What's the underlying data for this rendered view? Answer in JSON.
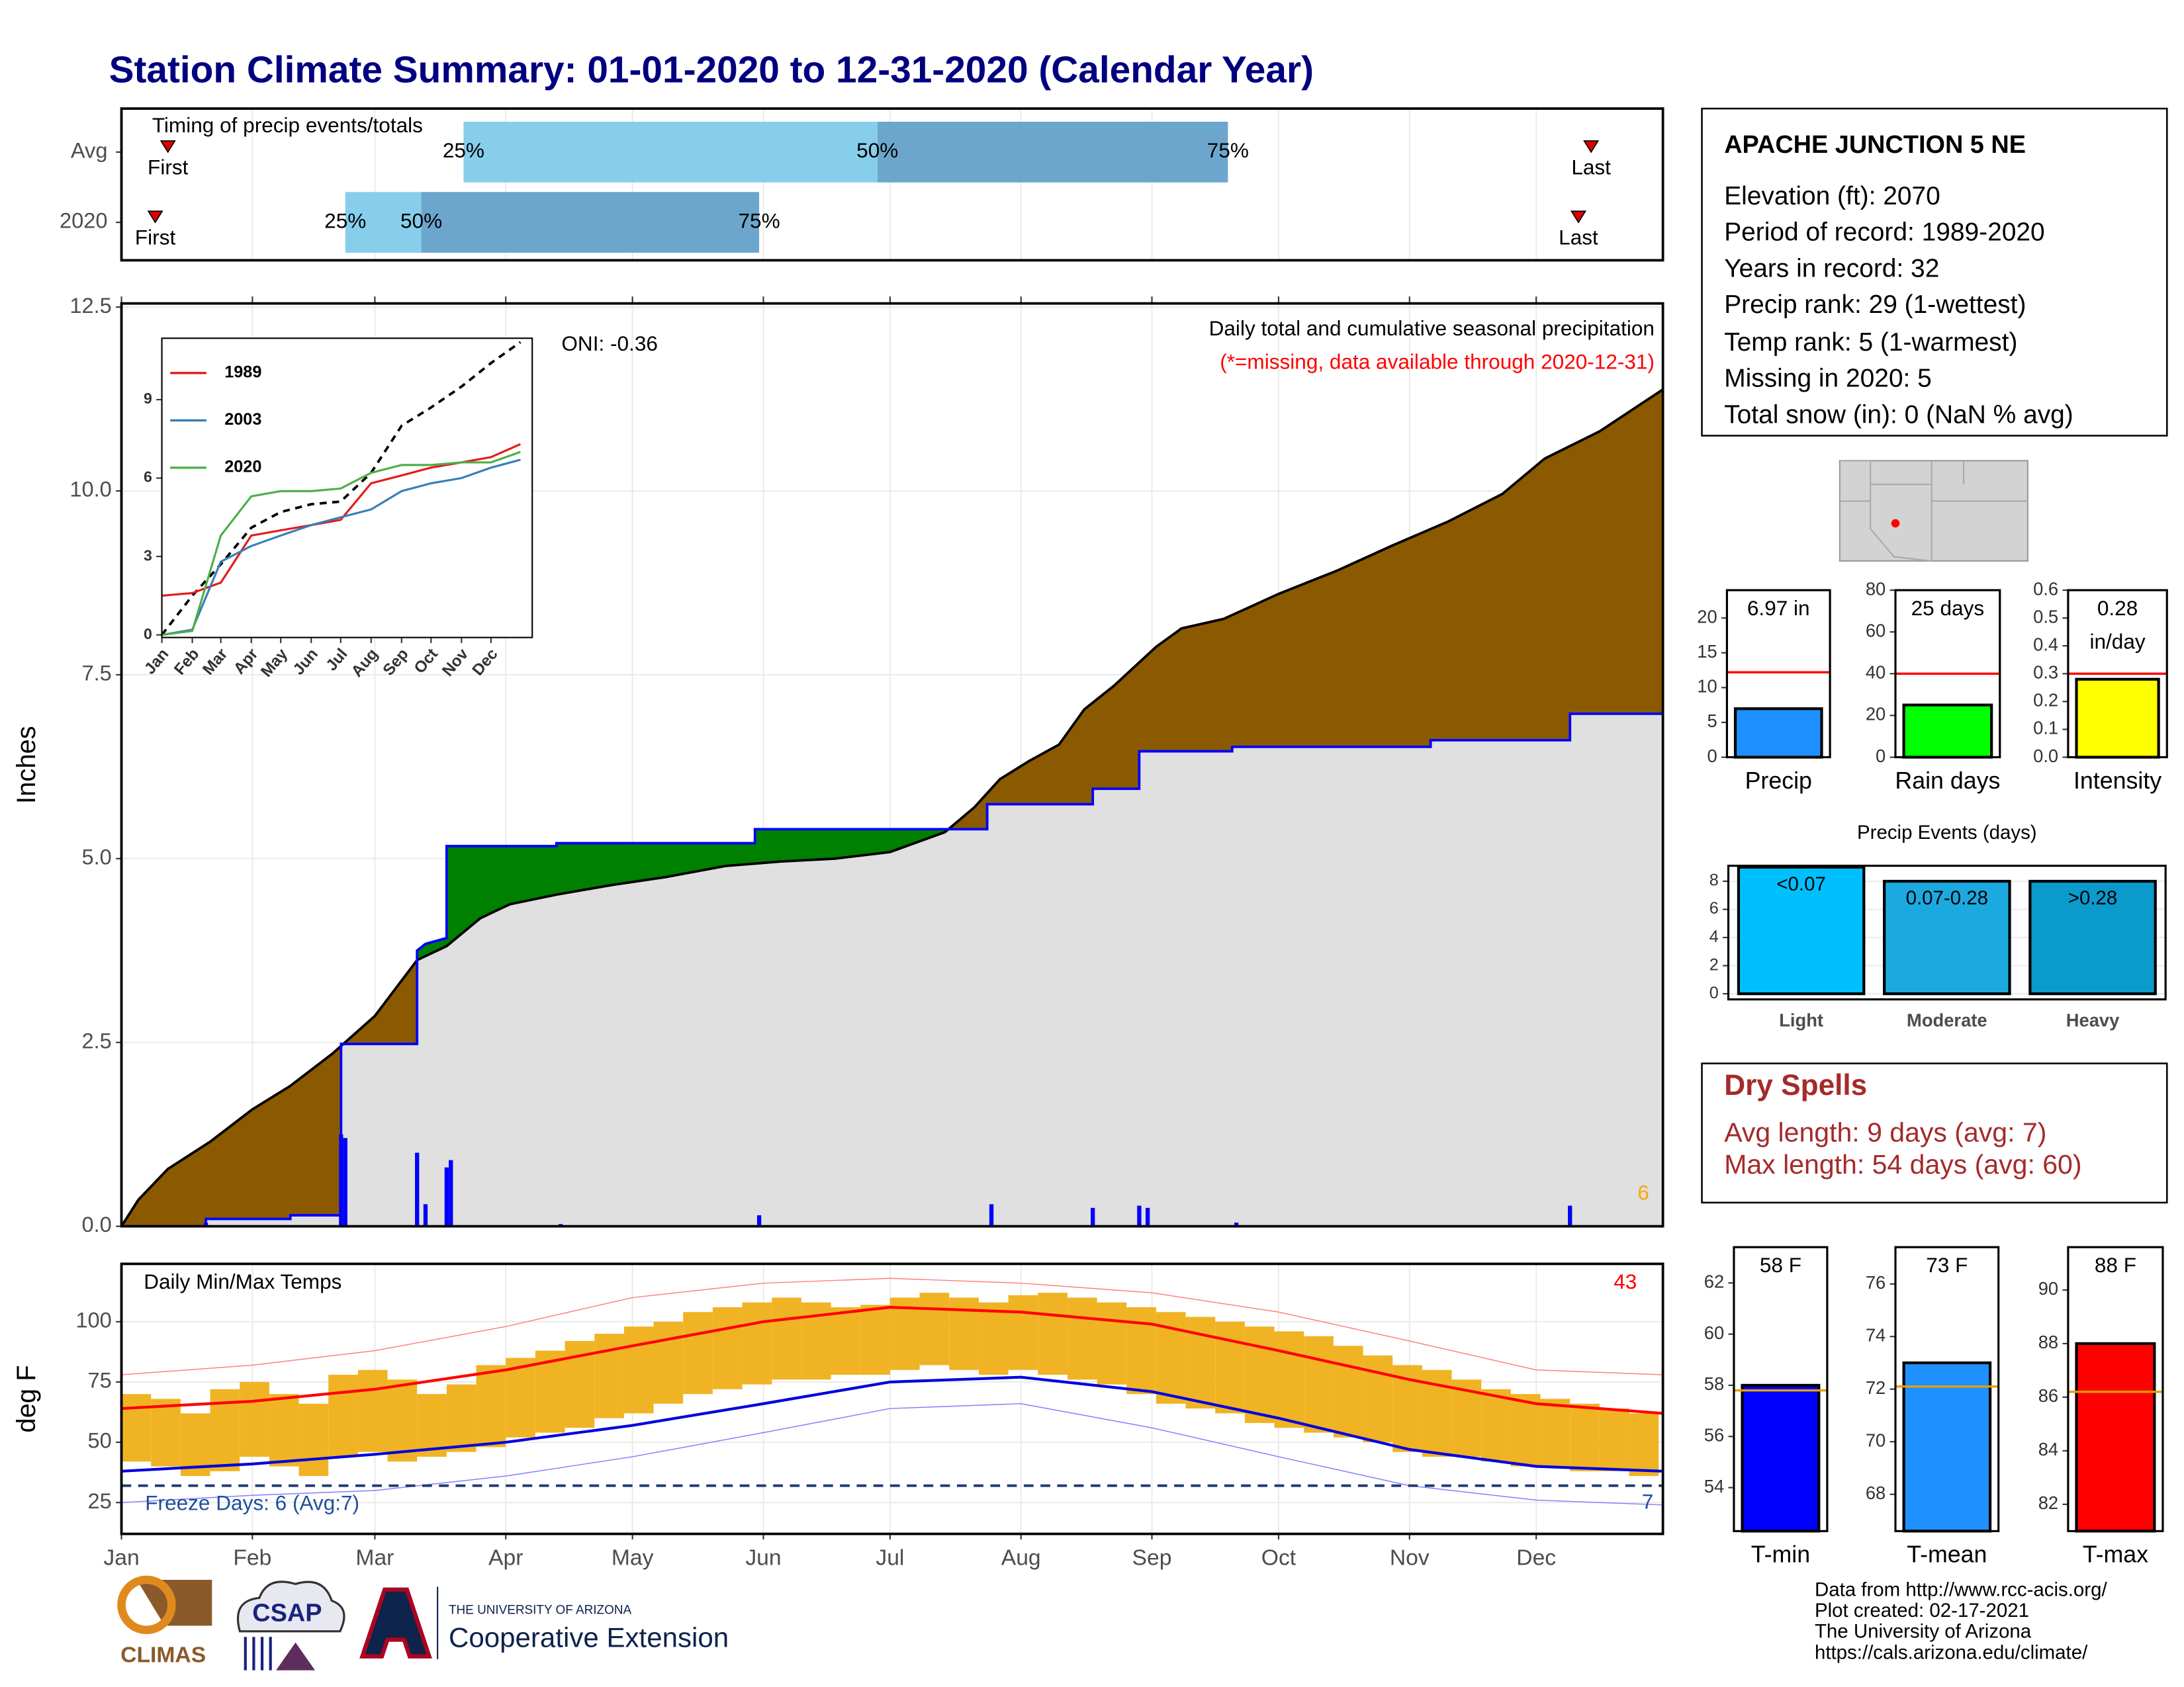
{
  "title": "Station Climate Summary: 01-01-2020 to 12-31-2020 (Calendar Year)",
  "station": {
    "name": "APACHE JUNCTION 5 NE",
    "lines": [
      "Elevation (ft): 2070",
      "Period of record: 1989-2020",
      "Years in record: 32",
      "Precip rank: 29 (1-wettest)",
      "Temp rank: 5 (1-warmest)",
      "Missing in 2020: 5",
      "Total snow (in): 0 (NaN % avg)"
    ]
  },
  "dry_spells": {
    "title": "Dry Spells",
    "lines": [
      "Avg length: 9 days (avg: 7)",
      "Max length: 54 days (avg: 60)"
    ]
  },
  "footer": [
    "Data from http://www.rcc-acis.org/",
    "Plot created: 02-17-2021",
    "The University of Arizona",
    "https://cals.arizona.edu/climate/"
  ],
  "logos": {
    "climas": "CLIMAS",
    "csap": "CSAP",
    "ua_small": "THE UNIVERSITY OF ARIZONA",
    "ua_ext": "Cooperative Extension"
  },
  "chart_data": [
    {
      "type": "timeline",
      "title": "Timing of precip events/totals",
      "xlim": [
        1,
        366
      ],
      "xgrid": [
        1,
        32,
        61,
        92,
        122,
        153,
        183,
        214,
        245,
        275,
        306,
        336
      ],
      "marker_labels": {
        "first": "First",
        "last": "Last",
        "p25": "25%",
        "p50": "50%",
        "p75": "75%"
      },
      "colors": {
        "early": "#87ceeb",
        "late": "#6ca6cd",
        "marker": "#e00000"
      },
      "rows": [
        {
          "label": "Avg",
          "first": 12,
          "p25": 82,
          "p50": 180,
          "p75": 263,
          "last": 349
        },
        {
          "label": "2020",
          "first": 9,
          "p25": 54,
          "p50": 72,
          "p75": 152,
          "last": 346
        }
      ]
    },
    {
      "type": "area",
      "title": "Daily total and cumulative seasonal precipitation",
      "note": "(*=missing, data available through 2020-12-31)",
      "oni": "ONI: -0.36",
      "count_label": 6,
      "ylabel": "Inches",
      "xlim": [
        1,
        366
      ],
      "xgrid": [
        1,
        32,
        61,
        92,
        122,
        153,
        183,
        214,
        245,
        275,
        306,
        336
      ],
      "ylim": [
        0,
        12.55
      ],
      "yticks": [
        {
          "value": 0,
          "label": "0.0"
        },
        2.5,
        {
          "value": 5,
          "label": "5.0"
        },
        7.5,
        {
          "value": 10,
          "label": "10.0"
        },
        12.5
      ],
      "deficit_color": "#8b5a00",
      "surplus_color": "#008000",
      "base_color": "#e0e0e0",
      "series": [
        {
          "color": "#000000",
          "x": [
            1,
            5,
            12,
            22,
            32,
            41,
            51,
            61,
            71,
            78,
            86,
            93,
            104,
            117,
            130,
            144,
            157,
            170,
            183,
            196,
            203,
            209,
            216,
            223,
            229,
            236,
            246,
            252,
            262,
            275,
            289,
            302,
            315,
            328,
            338,
            351,
            361,
            366
          ],
          "values": [
            0,
            0.36,
            0.78,
            1.15,
            1.59,
            1.91,
            2.35,
            2.86,
            3.62,
            3.81,
            4.19,
            4.38,
            4.51,
            4.64,
            4.75,
            4.9,
            4.96,
            5.0,
            5.09,
            5.36,
            5.7,
            6.08,
            6.33,
            6.55,
            7.03,
            7.35,
            7.88,
            8.13,
            8.26,
            8.6,
            8.92,
            9.26,
            9.58,
            9.96,
            10.44,
            10.81,
            11.19,
            11.38
          ]
        },
        {
          "color": "#0000ff",
          "x": [
            1,
            21,
            21,
            41,
            41,
            53,
            53,
            71,
            71,
            73,
            78,
            78,
            104,
            104,
            151,
            151,
            206,
            206,
            231,
            231,
            242,
            242,
            264,
            264,
            311,
            311,
            344,
            344,
            366
          ],
          "values": [
            0,
            0,
            0.1,
            0.1,
            0.15,
            0.15,
            2.48,
            2.48,
            3.75,
            3.84,
            3.92,
            5.17,
            5.17,
            5.21,
            5.21,
            5.4,
            5.4,
            5.74,
            5.74,
            5.95,
            5.95,
            6.46,
            6.46,
            6.52,
            6.52,
            6.61,
            6.61,
            6.97,
            6.97
          ]
        }
      ],
      "daily": {
        "color": "#0000ff",
        "x": [
          21,
          53,
          54,
          71,
          73,
          78,
          79,
          105,
          152,
          207,
          231,
          242,
          244,
          265,
          344
        ],
        "values": [
          0.05,
          1.25,
          1.2,
          1.0,
          0.3,
          0.8,
          0.9,
          0.03,
          0.15,
          0.3,
          0.25,
          0.28,
          0.25,
          0.05,
          0.28
        ]
      }
    },
    {
      "type": "line",
      "xlim": [
        1,
        378
      ],
      "ylim": [
        -0.1,
        11.35
      ],
      "yticks": [
        0,
        3,
        6,
        9
      ],
      "xticks": [
        {
          "value": 1,
          "label": "Jan"
        },
        {
          "value": 32,
          "label": "Feb"
        },
        {
          "value": 61,
          "label": "Mar"
        },
        {
          "value": 92,
          "label": "Apr"
        },
        {
          "value": 122,
          "label": "May"
        },
        {
          "value": 153,
          "label": "Jun"
        },
        {
          "value": 183,
          "label": "Jul"
        },
        {
          "value": 214,
          "label": "Aug"
        },
        {
          "value": 245,
          "label": "Sep"
        },
        {
          "value": 275,
          "label": "Oct"
        },
        {
          "value": 306,
          "label": "Nov"
        },
        {
          "value": 336,
          "label": "Dec"
        }
      ],
      "series": [
        {
          "color": "#000000",
          "dashed": true,
          "x": [
            1,
            32,
            61,
            92,
            122,
            153,
            183,
            214,
            245,
            275,
            306,
            336,
            366
          ],
          "values": [
            0,
            1.5,
            2.7,
            4.1,
            4.7,
            5.0,
            5.1,
            6.2,
            8.0,
            8.7,
            9.5,
            10.4,
            11.2
          ]
        },
        {
          "name": "1989",
          "color": "#e41a1c",
          "x": [
            1,
            32,
            61,
            92,
            122,
            153,
            183,
            214,
            245,
            275,
            306,
            336,
            366
          ],
          "values": [
            1.5,
            1.6,
            2.0,
            3.8,
            4.0,
            4.2,
            4.4,
            5.8,
            6.1,
            6.4,
            6.6,
            6.8,
            7.3
          ]
        },
        {
          "name": "2003",
          "color": "#377eb8",
          "x": [
            1,
            32,
            61,
            92,
            122,
            153,
            183,
            214,
            245,
            275,
            306,
            336,
            366
          ],
          "values": [
            0,
            0.2,
            2.8,
            3.4,
            3.8,
            4.2,
            4.5,
            4.8,
            5.5,
            5.8,
            6.0,
            6.4,
            6.7
          ]
        },
        {
          "name": "2020",
          "color": "#4daf4a",
          "x": [
            1,
            32,
            61,
            92,
            122,
            153,
            183,
            214,
            245,
            275,
            306,
            336,
            366
          ],
          "values": [
            0,
            0.15,
            3.8,
            5.3,
            5.5,
            5.5,
            5.6,
            6.2,
            6.5,
            6.5,
            6.6,
            6.6,
            7.0
          ]
        }
      ]
    },
    {
      "type": "range",
      "title": "Daily Min/Max Temps",
      "hot_count": 43,
      "freeze_label": "Freeze Days: 6 (Avg:7)",
      "cold_count": 7,
      "ylabel": "deg F",
      "xlim": [
        1,
        366
      ],
      "ylim": [
        12,
        124
      ],
      "yticks": [
        25,
        50,
        75,
        100
      ],
      "freeze": 32,
      "xticks": [
        {
          "value": 1,
          "label": "Jan"
        },
        {
          "value": 32,
          "label": "Feb"
        },
        {
          "value": 61,
          "label": "Mar"
        },
        {
          "value": 92,
          "label": "Apr"
        },
        {
          "value": 122,
          "label": "May"
        },
        {
          "value": 153,
          "label": "Jun"
        },
        {
          "value": 183,
          "label": "Jul"
        },
        {
          "value": 214,
          "label": "Aug"
        },
        {
          "value": 245,
          "label": "Sep"
        },
        {
          "value": 275,
          "label": "Oct"
        },
        {
          "value": 306,
          "label": "Nov"
        },
        {
          "value": 336,
          "label": "Dec"
        }
      ],
      "bars": {
        "color": "#f0b323",
        "width": 7,
        "x": [
          1,
          8,
          15,
          22,
          29,
          36,
          43,
          50,
          57,
          64,
          71,
          78,
          85,
          92,
          99,
          106,
          113,
          120,
          127,
          134,
          141,
          148,
          155,
          162,
          169,
          176,
          183,
          190,
          197,
          204,
          211,
          218,
          225,
          232,
          239,
          246,
          253,
          260,
          267,
          274,
          281,
          288,
          295,
          302,
          309,
          316,
          323,
          330,
          337,
          344,
          351,
          358
        ],
        "low": [
          42,
          40,
          36,
          38,
          44,
          40,
          36,
          44,
          46,
          42,
          44,
          46,
          48,
          52,
          54,
          56,
          60,
          62,
          66,
          70,
          72,
          74,
          76,
          76,
          78,
          78,
          80,
          82,
          80,
          78,
          80,
          78,
          76,
          74,
          70,
          66,
          64,
          62,
          58,
          56,
          54,
          52,
          50,
          46,
          44,
          44,
          42,
          40,
          40,
          38,
          38,
          36
        ],
        "high": [
          70,
          68,
          62,
          72,
          75,
          70,
          66,
          78,
          80,
          76,
          70,
          74,
          82,
          85,
          88,
          92,
          95,
          98,
          100,
          104,
          106,
          108,
          110,
          108,
          106,
          107,
          110,
          112,
          110,
          108,
          111,
          112,
          110,
          108,
          106,
          104,
          102,
          100,
          98,
          96,
          94,
          90,
          86,
          82,
          80,
          76,
          72,
          70,
          68,
          66,
          64,
          62
        ]
      },
      "lines": [
        {
          "color": "#ff8080",
          "width": 0.7,
          "x": [
            1,
            32,
            61,
            92,
            122,
            153,
            183,
            214,
            245,
            275,
            306,
            336,
            366
          ],
          "values": [
            78,
            82,
            88,
            98,
            110,
            116,
            118,
            116,
            112,
            104,
            92,
            80,
            78
          ]
        },
        {
          "color": "#8080ff",
          "width": 0.7,
          "x": [
            1,
            32,
            61,
            92,
            122,
            153,
            183,
            214,
            245,
            275,
            306,
            336,
            366
          ],
          "values": [
            25,
            28,
            30,
            36,
            44,
            54,
            64,
            66,
            56,
            44,
            32,
            26,
            24
          ]
        },
        {
          "color": "#ff0000",
          "width": 2,
          "x": [
            1,
            32,
            61,
            92,
            122,
            153,
            183,
            214,
            245,
            275,
            306,
            336,
            366
          ],
          "values": [
            64,
            67,
            72,
            80,
            90,
            100,
            106,
            104,
            99,
            88,
            76,
            66,
            62
          ]
        },
        {
          "color": "#0000e0",
          "width": 2,
          "x": [
            1,
            32,
            61,
            92,
            122,
            153,
            183,
            214,
            245,
            275,
            306,
            336,
            366
          ],
          "values": [
            38,
            41,
            45,
            50,
            57,
            66,
            75,
            77,
            71,
            60,
            47,
            40,
            38
          ]
        }
      ]
    },
    {
      "type": "bar",
      "categories": [
        "Precip"
      ],
      "values": [
        6.97
      ],
      "value_labels": [
        "6.97 in"
      ],
      "average": 12.2,
      "avg_color": "#ff0000",
      "color": "#1e90ff",
      "ylim": [
        0,
        24
      ],
      "yticks": [
        0,
        5,
        10,
        15,
        20
      ]
    },
    {
      "type": "bar",
      "categories": [
        "Rain days"
      ],
      "values": [
        25
      ],
      "value_labels": [
        "25 days"
      ],
      "average": 40,
      "avg_color": "#ff0000",
      "color": "#00ff00",
      "ylim": [
        0,
        80
      ],
      "yticks": [
        0,
        20,
        40,
        60,
        80
      ]
    },
    {
      "type": "bar",
      "categories": [
        "Intensity"
      ],
      "values": [
        0.28
      ],
      "value_labels": [
        "0.28 in/day"
      ],
      "average": 0.3,
      "avg_color": "#ff0000",
      "color": "#ffff00",
      "ylim": [
        0,
        0.6
      ],
      "yticks": [
        {
          "value": 0,
          "label": "0.0"
        },
        0.1,
        0.2,
        0.3,
        0.4,
        0.5,
        0.6
      ]
    },
    {
      "type": "bar",
      "title": "Precip Events (days)",
      "categories": [
        "Light",
        "Moderate",
        "Heavy"
      ],
      "values": [
        9,
        8,
        8
      ],
      "bin_labels": [
        "<0.07",
        "0.07-0.28",
        ">0.28"
      ],
      "colors": [
        "#00bfff",
        "#1ca9e0",
        "#0a9acc"
      ],
      "grid": true,
      "ylim": [
        -0.4,
        9.1
      ],
      "yticks": [
        0,
        2,
        4,
        6,
        8
      ]
    },
    {
      "type": "bar",
      "categories": [
        "T-min"
      ],
      "values": [
        58
      ],
      "value_labels": [
        "58 F"
      ],
      "average": 57.8,
      "avg_color": "#e69f00",
      "color": "#0000ff",
      "ylim": [
        52.3,
        63.4
      ],
      "yticks": [
        54,
        56,
        58,
        60,
        62
      ]
    },
    {
      "type": "bar",
      "categories": [
        "T-mean"
      ],
      "values": [
        73
      ],
      "value_labels": [
        "73 F"
      ],
      "average": 72.1,
      "avg_color": "#e69f00",
      "color": "#1e90ff",
      "ylim": [
        66.6,
        77.4
      ],
      "yticks": [
        68,
        70,
        72,
        74,
        76
      ]
    },
    {
      "type": "bar",
      "categories": [
        "T-max"
      ],
      "values": [
        88
      ],
      "value_labels": [
        "88 F"
      ],
      "average": 86.2,
      "avg_color": "#e69f00",
      "color": "#ff0000",
      "ylim": [
        81,
        91.6
      ],
      "yticks": [
        82,
        84,
        86,
        88,
        90
      ]
    }
  ]
}
